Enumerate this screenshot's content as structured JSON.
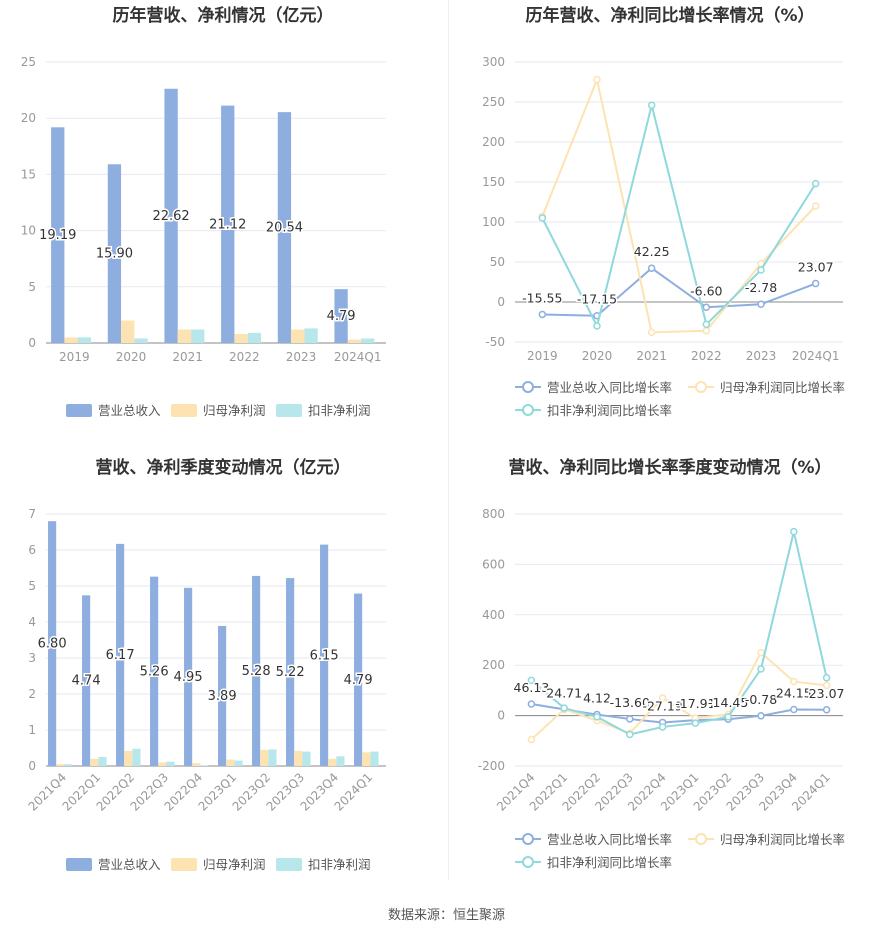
{
  "footer": "数据来源：恒生聚源",
  "colors": {
    "revenue": "#8eaee0",
    "net": "#fde3b2",
    "deducted": "#b7e7ea",
    "line_net": "#fde3b2",
    "line_deducted": "#8fd8dc",
    "grid": "#e6e9f0",
    "axis": "#999999"
  },
  "chart_data": [
    {
      "type": "bar",
      "title": "历年营收、净利情况（亿元）",
      "categories": [
        "2019",
        "2020",
        "2021",
        "2022",
        "2023",
        "2024Q1"
      ],
      "ylim": [
        0,
        25
      ],
      "yticks": [
        "0",
        "5",
        "10",
        "15",
        "20",
        "25"
      ],
      "series": [
        {
          "name": "营业总收入",
          "values": [
            19.19,
            15.9,
            22.62,
            21.12,
            20.54,
            4.79
          ],
          "labels": [
            "19.19",
            "15.90",
            "22.62",
            "21.12",
            "20.54",
            "4.79"
          ]
        },
        {
          "name": "归母净利润",
          "values": [
            0.5,
            2.0,
            1.2,
            0.8,
            1.2,
            0.3
          ]
        },
        {
          "name": "扣非净利润",
          "values": [
            0.5,
            0.4,
            1.2,
            0.9,
            1.3,
            0.4
          ]
        }
      ],
      "legend": "bottom"
    },
    {
      "type": "line",
      "title": "历年营收、净利同比增长率情况（%）",
      "categories": [
        "2019",
        "2020",
        "2021",
        "2022",
        "2023",
        "2024Q1"
      ],
      "ylim": [
        -50,
        300
      ],
      "yticks": [
        "-50",
        "0",
        "50",
        "100",
        "150",
        "200",
        "250",
        "300"
      ],
      "series": [
        {
          "name": "营业总收入同比增长率",
          "values": [
            -15.55,
            -17.15,
            42.25,
            -6.6,
            -2.78,
            23.07
          ],
          "labels": [
            "-15.55",
            "-17.15",
            "42.25",
            "-6.60",
            "-2.78",
            "23.07"
          ]
        },
        {
          "name": "归母净利润同比增长率",
          "values": [
            107,
            278,
            -38,
            -36,
            48,
            120
          ]
        },
        {
          "name": "扣非净利润同比增长率",
          "values": [
            105,
            -30,
            246,
            -28,
            40,
            148
          ]
        }
      ],
      "legend": "bottom"
    },
    {
      "type": "bar",
      "title": "营收、净利季度变动情况（亿元）",
      "categories": [
        "2021Q4",
        "2022Q1",
        "2022Q2",
        "2022Q3",
        "2022Q4",
        "2023Q1",
        "2023Q2",
        "2023Q3",
        "2023Q4",
        "2024Q1"
      ],
      "ylim": [
        0,
        7
      ],
      "yticks": [
        "0",
        "1",
        "2",
        "3",
        "4",
        "5",
        "6",
        "7"
      ],
      "series": [
        {
          "name": "营业总收入",
          "values": [
            6.8,
            4.74,
            6.17,
            5.26,
            4.95,
            3.89,
            5.28,
            5.22,
            6.15,
            4.79
          ],
          "labels": [
            "6.80",
            "4.74",
            "6.17",
            "5.26",
            "4.95",
            "3.89",
            "5.28",
            "5.22",
            "6.15",
            "4.79"
          ]
        },
        {
          "name": "归母净利润",
          "values": [
            0.05,
            0.2,
            0.42,
            0.1,
            0.08,
            0.18,
            0.45,
            0.42,
            0.2,
            0.38
          ]
        },
        {
          "name": "扣非净利润",
          "values": [
            0.05,
            0.25,
            0.48,
            0.12,
            0.02,
            0.15,
            0.46,
            0.4,
            0.27,
            0.4
          ]
        }
      ],
      "legend": "bottom"
    },
    {
      "type": "line",
      "title": "营收、净利同比增长率季度变动情况（%）",
      "categories": [
        "2021Q4",
        "2022Q1",
        "2022Q2",
        "2022Q3",
        "2022Q4",
        "2023Q1",
        "2023Q2",
        "2023Q3",
        "2023Q4",
        "2024Q1"
      ],
      "ylim": [
        -200,
        800
      ],
      "yticks": [
        "-200",
        "0",
        "200",
        "400",
        "600",
        "800"
      ],
      "series": [
        {
          "name": "营业总收入同比增长率",
          "values": [
            46.13,
            24.71,
            4.12,
            -13.6,
            -27.19,
            -17.91,
            -14.45,
            -0.78,
            24.15,
            23.07
          ],
          "labels": [
            "46.13",
            "24.71",
            "4.12",
            "-13.60",
            "-27.19",
            "-17.91",
            "-14.45",
            "-0.78",
            "24.15",
            "23.07"
          ]
        },
        {
          "name": "归母净利润同比增长率",
          "values": [
            -95,
            25,
            -20,
            -70,
            70,
            -10,
            5,
            250,
            135,
            120
          ]
        },
        {
          "name": "扣非净利润同比增长率",
          "values": [
            140,
            30,
            -5,
            -75,
            -45,
            -30,
            -5,
            185,
            730,
            150
          ]
        }
      ],
      "legend": "bottom"
    }
  ]
}
